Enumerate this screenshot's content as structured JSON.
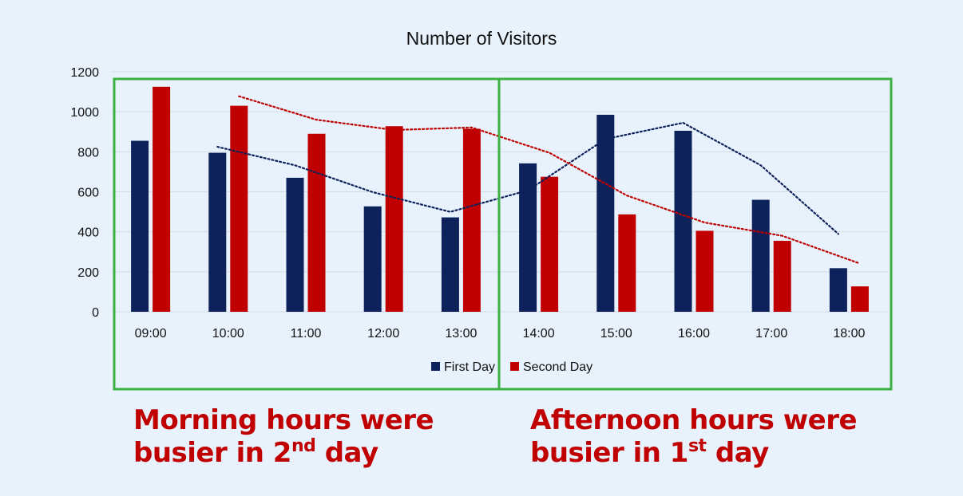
{
  "chart_data": {
    "type": "bar",
    "title": "Number of Visitors",
    "categories": [
      "09:00",
      "10:00",
      "11:00",
      "12:00",
      "13:00",
      "14:00",
      "15:00",
      "16:00",
      "17:00",
      "18:00"
    ],
    "series": [
      {
        "name": "First Day",
        "color": "#0d215b",
        "values": [
          855,
          795,
          670,
          527,
          472,
          742,
          985,
          905,
          560,
          218
        ]
      },
      {
        "name": "Second Day",
        "color": "#c00000",
        "values": [
          1125,
          1030,
          890,
          928,
          915,
          675,
          487,
          405,
          355,
          127
        ]
      }
    ],
    "trendlines": [
      {
        "series": "First Day",
        "type": "moving-average",
        "period": 2,
        "style": "dotted",
        "color": "#0d215b"
      },
      {
        "series": "Second Day",
        "type": "moving-average",
        "period": 2,
        "style": "dotted",
        "color": "#c00000"
      }
    ],
    "ylim": [
      0,
      1200
    ],
    "yticks": [
      0,
      200,
      400,
      600,
      800,
      1000,
      1200
    ],
    "xlabel": "",
    "ylabel": "",
    "grid": true,
    "legend_position": "bottom"
  },
  "highlights": [
    {
      "categories": [
        "09:00",
        "13:00"
      ],
      "color": "#3cb043"
    },
    {
      "categories": [
        "14:00",
        "18:00"
      ],
      "color": "#3cb043"
    }
  ],
  "annotations": {
    "color": "#c00000",
    "left": {
      "line1": "Morning hours were",
      "line2_pre": "busier in 2",
      "line2_sup": "nd",
      "line2_post": " day"
    },
    "right": {
      "line1": "Afternoon hours were",
      "line2_pre": "busier in 1",
      "line2_sup": "st",
      "line2_post": " day"
    }
  }
}
